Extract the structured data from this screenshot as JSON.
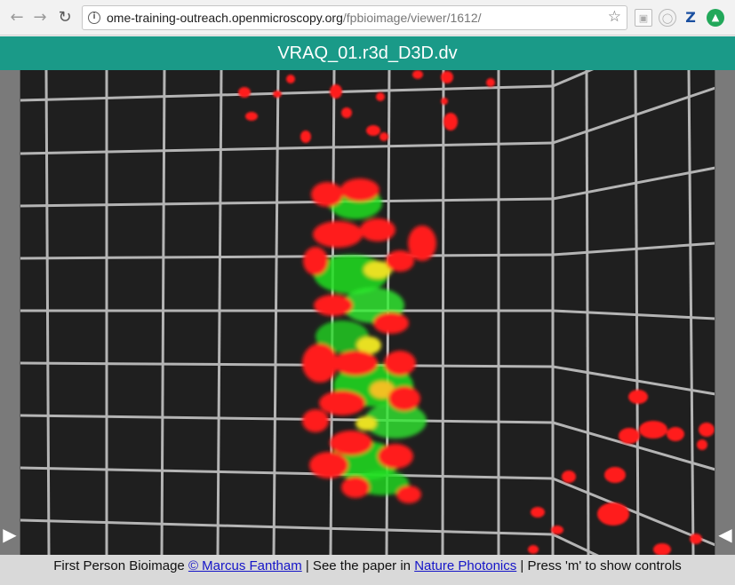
{
  "browser": {
    "back_icon": "back-arrow-icon",
    "forward_icon": "forward-arrow-icon",
    "reload_icon": "reload-icon",
    "url_host": "ome-training-outreach.openmicroscopy.org",
    "url_path": "/fpbioimage/viewer/1612/",
    "extensions": [
      "screenshot-extension-icon",
      "ring-extension-icon",
      "zotero-z-icon",
      "upload-extension-icon"
    ],
    "ext_z_label": "Z"
  },
  "viewer": {
    "title": "VRAQ_01.r3d_D3D.dv",
    "colors": {
      "header": "#1a9a88",
      "grid": "#b4b4b4",
      "background": "#1f1f1f",
      "channel_red": "#ff1a1a",
      "channel_green": "#20e020"
    }
  },
  "footer": {
    "prefix": "First Person Bioimage ",
    "author_link": "© Marcus Fantham",
    "middle": " | See the paper in ",
    "paper_link": "Nature Photonics",
    "suffix": " | Press 'm' to show controls"
  }
}
